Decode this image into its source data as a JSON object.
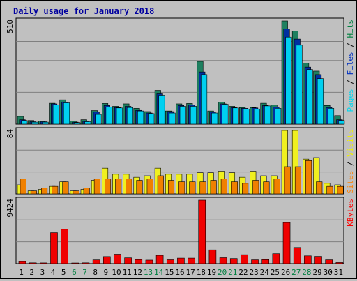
{
  "chart_data": [
    {
      "type": "bar",
      "title": "Daily usage for January 2018",
      "ymax_label": "510",
      "ylim": [
        0,
        510
      ],
      "legend": [
        "Pages",
        "Files",
        "Hits"
      ],
      "legend_colors": [
        "#00d8f0",
        "#0030c0",
        "#008040"
      ],
      "categories": [
        "1",
        "2",
        "3",
        "4",
        "5",
        "6",
        "7",
        "8",
        "9",
        "10",
        "11",
        "12",
        "13",
        "14",
        "15",
        "16",
        "17",
        "18",
        "19",
        "20",
        "21",
        "22",
        "23",
        "24",
        "25",
        "26",
        "27",
        "28",
        "29",
        "30",
        "31"
      ],
      "weekend_days": [
        "6",
        "7",
        "13",
        "14",
        "20",
        "21",
        "27",
        "28"
      ],
      "series": [
        {
          "name": "Hits",
          "color": "#1e8060",
          "values": [
            38,
            18,
            16,
            103,
            120,
            15,
            22,
            67,
            102,
            88,
            100,
            78,
            62,
            167,
            65,
            100,
            102,
            310,
            65,
            108,
            88,
            82,
            82,
            103,
            95,
            510,
            460,
            302,
            262,
            92,
            42
          ]
        },
        {
          "name": "Files",
          "color": "#0030a0",
          "values": [
            22,
            12,
            12,
            100,
            108,
            10,
            14,
            60,
            92,
            82,
            88,
            68,
            55,
            150,
            62,
            92,
            95,
            258,
            60,
            100,
            82,
            78,
            80,
            92,
            85,
            470,
            420,
            282,
            245,
            82,
            22
          ]
        },
        {
          "name": "Pages",
          "color": "#00d0f0",
          "values": [
            18,
            10,
            10,
            95,
            105,
            8,
            12,
            48,
            85,
            80,
            82,
            65,
            52,
            143,
            55,
            88,
            88,
            245,
            55,
            98,
            80,
            75,
            75,
            90,
            78,
            430,
            390,
            270,
            225,
            78,
            18
          ]
        }
      ]
    },
    {
      "type": "bar",
      "ymax_label": "84",
      "ylim": [
        0,
        84
      ],
      "legend": [
        "Sites",
        "Visits"
      ],
      "legend_colors": [
        "#ff8000",
        "#f0f000"
      ],
      "categories": [
        "1",
        "2",
        "3",
        "4",
        "5",
        "6",
        "7",
        "8",
        "9",
        "10",
        "11",
        "12",
        "13",
        "14",
        "15",
        "16",
        "17",
        "18",
        "19",
        "20",
        "21",
        "22",
        "23",
        "24",
        "25",
        "26",
        "27",
        "28",
        "29",
        "30",
        "31"
      ],
      "series": [
        {
          "name": "Visits",
          "color": "#f0f020",
          "values": [
            12,
            4,
            6,
            10,
            16,
            4,
            6,
            18,
            34,
            26,
            26,
            22,
            24,
            34,
            26,
            26,
            26,
            28,
            28,
            30,
            28,
            22,
            30,
            24,
            24,
            84,
            84,
            46,
            48,
            14,
            12
          ]
        },
        {
          "name": "Sites",
          "color": "#f08000",
          "values": [
            20,
            4,
            8,
            10,
            16,
            4,
            8,
            20,
            20,
            20,
            20,
            18,
            20,
            24,
            18,
            16,
            16,
            16,
            18,
            20,
            16,
            14,
            18,
            16,
            20,
            36,
            36,
            44,
            16,
            10,
            10
          ]
        }
      ]
    },
    {
      "type": "bar",
      "ymax_label": "9424",
      "ylim": [
        0,
        9424
      ],
      "legend": [
        "KBytes"
      ],
      "legend_colors": [
        "#ff0000"
      ],
      "categories": [
        "1",
        "2",
        "3",
        "4",
        "5",
        "6",
        "7",
        "8",
        "9",
        "10",
        "11",
        "12",
        "13",
        "14",
        "15",
        "16",
        "17",
        "18",
        "19",
        "20",
        "21",
        "22",
        "23",
        "24",
        "25",
        "26",
        "27",
        "28",
        "29",
        "30",
        "31"
      ],
      "series": [
        {
          "name": "KBytes",
          "color": "#f00000",
          "values": [
            300,
            120,
            110,
            4600,
            5100,
            100,
            120,
            550,
            1050,
            1400,
            860,
            600,
            520,
            1230,
            570,
            820,
            820,
            9424,
            2050,
            880,
            760,
            1330,
            560,
            590,
            1480,
            6100,
            2400,
            1160,
            1080,
            560,
            160
          ]
        }
      ]
    }
  ]
}
